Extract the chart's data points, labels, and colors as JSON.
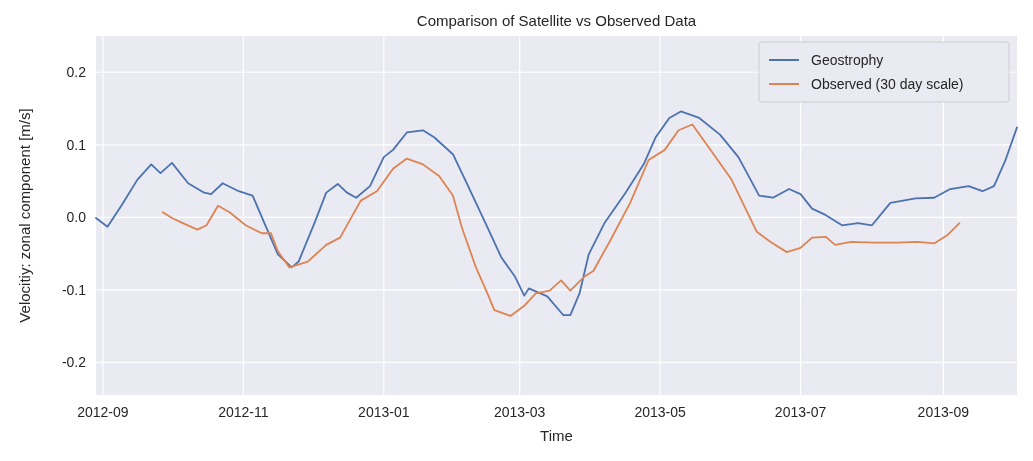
{
  "chart_data": {
    "type": "line",
    "title": "Comparison of Satellite vs Observed Data",
    "xlabel": "Time",
    "ylabel": "Velocitiy: zonal component [m/s]",
    "xlim": [
      "2012-08-29",
      "2013-10-03"
    ],
    "ylim": [
      -0.245,
      0.25
    ],
    "xticks": [
      {
        "value": "2012-09-01",
        "label": "2012-09"
      },
      {
        "value": "2012-11-01",
        "label": "2012-11"
      },
      {
        "value": "2013-01-01",
        "label": "2013-01"
      },
      {
        "value": "2013-03-01",
        "label": "2013-03"
      },
      {
        "value": "2013-05-01",
        "label": "2013-05"
      },
      {
        "value": "2013-07-01",
        "label": "2013-07"
      },
      {
        "value": "2013-09-01",
        "label": "2013-09"
      }
    ],
    "yticks": [
      {
        "value": -0.2,
        "label": "-0.2"
      },
      {
        "value": -0.1,
        "label": "-0.1"
      },
      {
        "value": 0,
        "label": "0.0"
      },
      {
        "value": 0.1,
        "label": "0.1"
      },
      {
        "value": 0.2,
        "label": "0.2"
      }
    ],
    "grid": true,
    "legend": "top right",
    "series": [
      {
        "name": "Geostrophy",
        "color": "#4c72b0",
        "x": [
          "2012-08-29",
          "2012-09-03",
          "2012-09-09",
          "2012-09-16",
          "2012-09-22",
          "2012-09-26",
          "2012-10-01",
          "2012-10-08",
          "2012-10-15",
          "2012-10-18",
          "2012-10-23",
          "2012-10-30",
          "2012-11-05",
          "2012-11-10",
          "2012-11-16",
          "2012-11-22",
          "2012-11-25",
          "2012-12-02",
          "2012-12-07",
          "2012-12-12",
          "2012-12-16",
          "2012-12-20",
          "2012-12-26",
          "2013-01-01",
          "2013-01-05",
          "2013-01-11",
          "2013-01-18",
          "2013-01-23",
          "2013-01-31",
          "2013-02-06",
          "2013-02-14",
          "2013-02-21",
          "2013-02-27",
          "2013-03-03",
          "2013-03-05",
          "2013-03-13",
          "2013-03-20",
          "2013-03-23",
          "2013-03-27",
          "2013-03-31",
          "2013-04-07",
          "2013-04-16",
          "2013-04-24",
          "2013-04-29",
          "2013-05-05",
          "2013-05-10",
          "2013-05-18",
          "2013-05-27",
          "2013-06-04",
          "2013-06-13",
          "2013-06-19",
          "2013-06-26",
          "2013-07-01",
          "2013-07-06",
          "2013-07-12",
          "2013-07-19",
          "2013-07-26",
          "2013-08-01",
          "2013-08-09",
          "2013-08-20",
          "2013-08-28",
          "2013-09-04",
          "2013-09-12",
          "2013-09-18",
          "2013-09-23",
          "2013-09-28",
          "2013-10-03"
        ],
        "values": [
          -0.001,
          -0.013,
          0.016,
          0.052,
          0.073,
          0.061,
          0.075,
          0.047,
          0.034,
          0.032,
          0.047,
          0.036,
          0.03,
          -0.007,
          -0.051,
          -0.069,
          -0.061,
          -0.007,
          0.034,
          0.046,
          0.034,
          0.027,
          0.043,
          0.083,
          0.093,
          0.117,
          0.12,
          0.11,
          0.087,
          0.047,
          -0.007,
          -0.055,
          -0.082,
          -0.108,
          -0.098,
          -0.109,
          -0.135,
          -0.135,
          -0.105,
          -0.051,
          -0.007,
          0.034,
          0.074,
          0.11,
          0.137,
          0.146,
          0.137,
          0.114,
          0.083,
          0.03,
          0.027,
          0.039,
          0.032,
          0.012,
          0.003,
          -0.011,
          -0.008,
          -0.011,
          0.02,
          0.026,
          0.027,
          0.039,
          0.043,
          0.036,
          0.043,
          0.079,
          0.124
        ]
      },
      {
        "name": "Observed (30 day scale)",
        "color": "#dd8452",
        "x": [
          "2012-09-27",
          "2012-10-01",
          "2012-10-05",
          "2012-10-12",
          "2012-10-16",
          "2012-10-21",
          "2012-10-26",
          "2012-11-02",
          "2012-11-09",
          "2012-11-13",
          "2012-11-16",
          "2012-11-21",
          "2012-11-29",
          "2012-12-07",
          "2012-12-13",
          "2012-12-22",
          "2012-12-29",
          "2013-01-05",
          "2013-01-11",
          "2013-01-18",
          "2013-01-25",
          "2013-01-31",
          "2013-02-04",
          "2013-02-10",
          "2013-02-15",
          "2013-02-18",
          "2013-02-25",
          "2013-03-03",
          "2013-03-08",
          "2013-03-14",
          "2013-03-19",
          "2013-03-23",
          "2013-03-29",
          "2013-04-02",
          "2013-04-09",
          "2013-04-18",
          "2013-04-26",
          "2013-05-03",
          "2013-05-09",
          "2013-05-15",
          "2013-05-22",
          "2013-06-01",
          "2013-06-12",
          "2013-06-18",
          "2013-06-25",
          "2013-07-01",
          "2013-07-06",
          "2013-07-12",
          "2013-07-16",
          "2013-07-23",
          "2013-08-02",
          "2013-08-12",
          "2013-08-21",
          "2013-08-28",
          "2013-09-03",
          "2013-09-08"
        ],
        "values": [
          0.007,
          -0.001,
          -0.007,
          -0.017,
          -0.011,
          0.016,
          0.007,
          -0.011,
          -0.022,
          -0.022,
          -0.047,
          -0.069,
          -0.061,
          -0.038,
          -0.028,
          0.023,
          0.036,
          0.067,
          0.081,
          0.073,
          0.057,
          0.03,
          -0.015,
          -0.069,
          -0.105,
          -0.128,
          -0.136,
          -0.122,
          -0.105,
          -0.101,
          -0.087,
          -0.101,
          -0.082,
          -0.074,
          -0.034,
          0.02,
          0.079,
          0.093,
          0.12,
          0.128,
          0.097,
          0.052,
          -0.02,
          -0.034,
          -0.048,
          -0.042,
          -0.028,
          -0.027,
          -0.038,
          -0.034,
          -0.035,
          -0.035,
          -0.034,
          -0.036,
          -0.024,
          -0.008
        ]
      }
    ]
  }
}
